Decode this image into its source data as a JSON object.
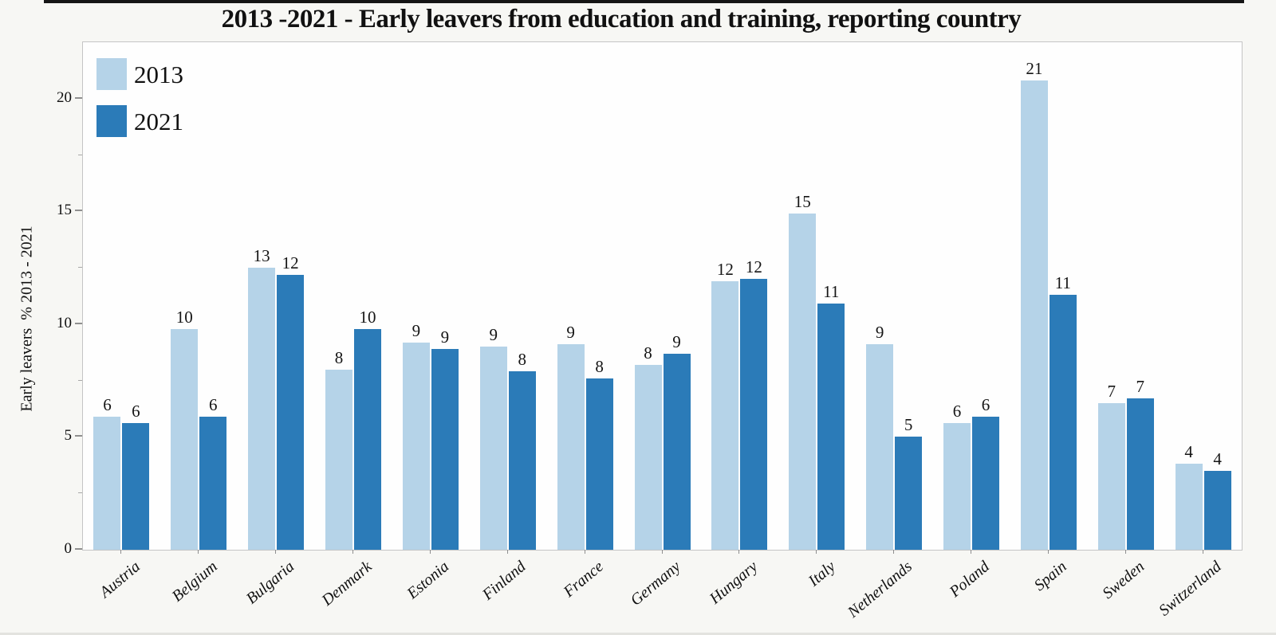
{
  "chart_data": {
    "type": "bar",
    "title": "2013 -2021 - Early leavers from education and training, reporting country",
    "ylabel": "Early leavers  % 2013 - 2021",
    "xlabel": "",
    "categories": [
      "Austria",
      "Belgium",
      "Bulgaria",
      "Denmark",
      "Estonia",
      "Finland",
      "France",
      "Germany",
      "Hungary",
      "Italy",
      "Netherlands",
      "Poland",
      "Spain",
      "Sweden",
      "Switzerland"
    ],
    "series": [
      {
        "name": "2013",
        "color": "#b5d3e8",
        "values": [
          5.9,
          9.8,
          12.5,
          8.0,
          9.2,
          9.0,
          9.1,
          8.2,
          11.9,
          14.9,
          9.1,
          5.6,
          20.8,
          6.5,
          3.8
        ],
        "bar_labels": [
          "6",
          "10",
          "13",
          "8",
          "9",
          "9",
          "9",
          "8",
          "12",
          "15",
          "9",
          "6",
          "21",
          "7",
          "4"
        ]
      },
      {
        "name": "2021",
        "color": "#2b7bb8",
        "values": [
          5.6,
          5.9,
          12.2,
          9.8,
          8.9,
          7.9,
          7.6,
          8.7,
          12.0,
          10.9,
          5.0,
          5.9,
          11.3,
          6.7,
          3.5
        ],
        "bar_labels": [
          "6",
          "6",
          "12",
          "10",
          "9",
          "8",
          "8",
          "9",
          "12",
          "11",
          "5",
          "6",
          "11",
          "7",
          "4"
        ]
      }
    ],
    "ylim": [
      0,
      22.5
    ],
    "yticks": [
      "0",
      "5",
      "10",
      "15",
      "20"
    ],
    "minor_ytick_step": 2.5,
    "grid": false,
    "legend_position": "top-left-inside",
    "value_labels_shown": true
  }
}
